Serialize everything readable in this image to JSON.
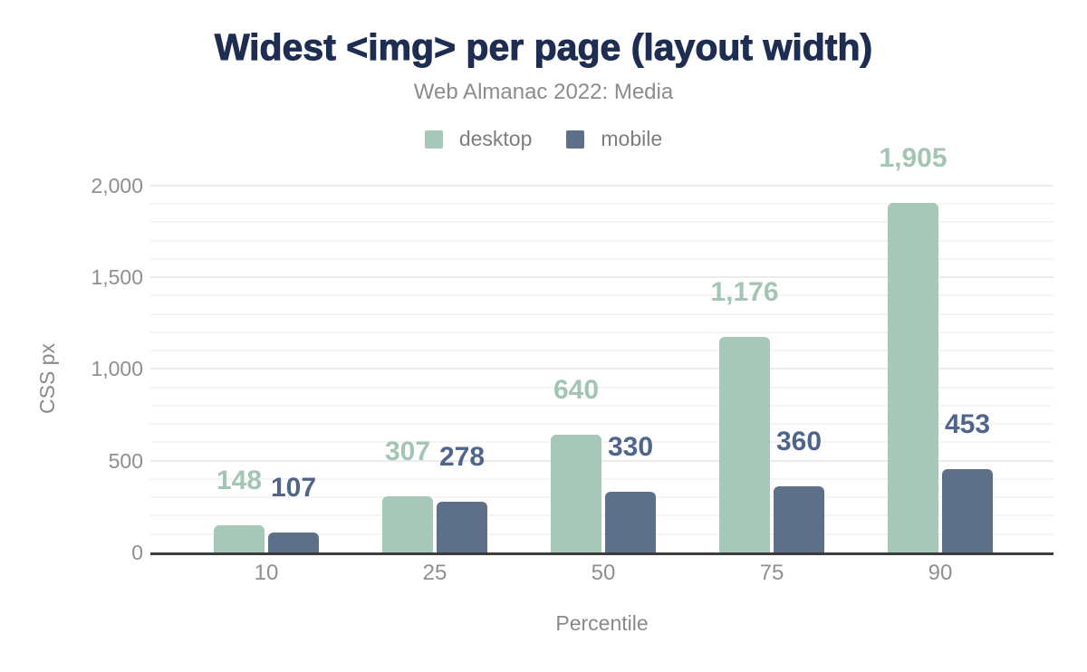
{
  "header": {
    "title": "Widest <img> per page (layout width)",
    "subtitle": "Web Almanac 2022: Media"
  },
  "chart_data": {
    "type": "bar",
    "title": "Widest <img> per page (layout width)",
    "subtitle": "Web Almanac 2022: Media",
    "categories": [
      "10",
      "25",
      "50",
      "75",
      "90"
    ],
    "series": [
      {
        "name": "desktop",
        "color": "#a6c8b8",
        "label_color": "#a3c6b4",
        "values": [
          148,
          307,
          640,
          1176,
          1905
        ]
      },
      {
        "name": "mobile",
        "color": "#5e6f8a",
        "label_color": "#50658b",
        "values": [
          107,
          278,
          330,
          360,
          453
        ]
      }
    ],
    "xlabel": "Percentile",
    "ylabel": "CSS px",
    "ylim": [
      0,
      2000
    ],
    "yticks": [
      0,
      500,
      1000,
      1500,
      2000
    ],
    "ytick_labels": [
      "0",
      "500",
      "1,000",
      "1,500",
      "2,000"
    ],
    "minor_grid_step": 100,
    "major_grid_step": 500,
    "grid": true,
    "legend_position": "top",
    "value_labels": true,
    "colors": {
      "title_text": "#1e2d52",
      "subtitle_text": "#8c8c8c",
      "legend_text": "#7d7d7d",
      "tick_text": "#8f8f8f",
      "axis_title_text": "#8a8a8a",
      "axis_line": "#3c3c3c",
      "major_grid": "#ebebeb",
      "minor_grid": "#f5f5f5"
    }
  }
}
